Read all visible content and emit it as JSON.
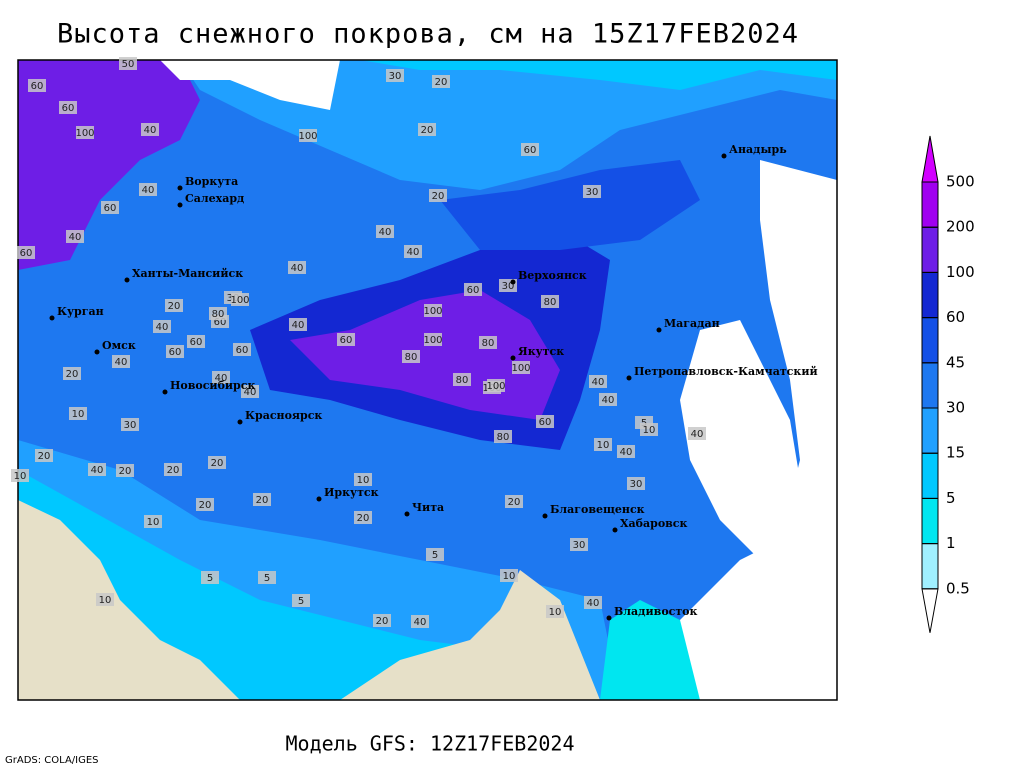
{
  "title": "Высота снежного покрова, см на 15Z17FEB2024",
  "footer": "Модель GFS: 12Z17FEB2024",
  "credit": "GrADS: COLA/IGES",
  "colorbar": {
    "levels": [
      0.5,
      1,
      5,
      15,
      30,
      45,
      60,
      100,
      200,
      500
    ],
    "colors": [
      "#ffffff",
      "#a0f0ff",
      "#00e6f0",
      "#00c8ff",
      "#20a0ff",
      "#1e78f0",
      "#1450e6",
      "#1428d2",
      "#6e1ee6",
      "#a000f0",
      "#d200ff"
    ]
  },
  "cities": [
    "Воркута",
    "Салехард",
    "Ханты-Мансийск",
    "Курган",
    "Омск",
    "Новосибирск",
    "Красноярск",
    "Иркутск",
    "Чита",
    "Благовещенск",
    "Хабаровск",
    "Владивосток",
    "Якутск",
    "Верхоянск",
    "Магадан",
    "Петропавловск-Камчатский",
    "Анадырь"
  ],
  "station_values": [
    50,
    60,
    60,
    100,
    40,
    30,
    20,
    100,
    20,
    60,
    30,
    20,
    40,
    40,
    40,
    20,
    30,
    40,
    60,
    40,
    60,
    40,
    60,
    100,
    80,
    60,
    60,
    40,
    100,
    60,
    60,
    30,
    80,
    100,
    80,
    80,
    100,
    100,
    80,
    40,
    40,
    40,
    60,
    40,
    20,
    10,
    30,
    20,
    10,
    40,
    20,
    20,
    20,
    20,
    20,
    10,
    10,
    5,
    5,
    10,
    20,
    5,
    10,
    10,
    40,
    30,
    5,
    10,
    40,
    20,
    30,
    40,
    10,
    20,
    40,
    80,
    100,
    60,
    40,
    5
  ]
}
